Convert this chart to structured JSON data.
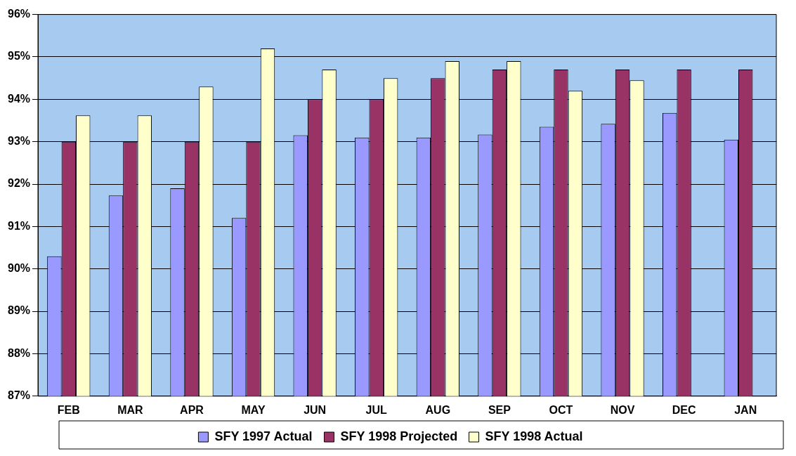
{
  "chart_data": {
    "type": "bar",
    "categories": [
      "FEB",
      "MAR",
      "APR",
      "MAY",
      "JUN",
      "JUL",
      "AUG",
      "SEP",
      "OCT",
      "NOV",
      "DEC",
      "JAN"
    ],
    "series": [
      {
        "name": "SFY 1997 Actual",
        "color": "#9999ff",
        "values": [
          90.3,
          91.73,
          91.9,
          91.2,
          93.15,
          93.1,
          93.1,
          93.17,
          93.35,
          93.42,
          93.68,
          93.05
        ]
      },
      {
        "name": "SFY 1998 Projected",
        "color": "#993366",
        "values": [
          93,
          93,
          93,
          93,
          94,
          94,
          94.5,
          94.7,
          94.7,
          94.7,
          94.7,
          94.7
        ]
      },
      {
        "name": "SFY 1998 Actual",
        "color": "#ffffcc",
        "values": [
          93.62,
          93.62,
          94.3,
          95.2,
          94.7,
          94.5,
          94.9,
          94.9,
          94.2,
          94.45,
          null,
          null
        ]
      }
    ],
    "ylim": [
      87,
      96
    ],
    "yticks": [
      {
        "value": 87,
        "label": "87%"
      },
      {
        "value": 88,
        "label": "88%"
      },
      {
        "value": 89,
        "label": "89%"
      },
      {
        "value": 90,
        "label": "90%"
      },
      {
        "value": 91,
        "label": "91%"
      },
      {
        "value": 92,
        "label": "92%"
      },
      {
        "value": 93,
        "label": "93%"
      },
      {
        "value": 94,
        "label": "94%"
      },
      {
        "value": 95,
        "label": "95%"
      },
      {
        "value": 96,
        "label": "96%"
      }
    ],
    "grid": "y",
    "legend": "bottom"
  }
}
